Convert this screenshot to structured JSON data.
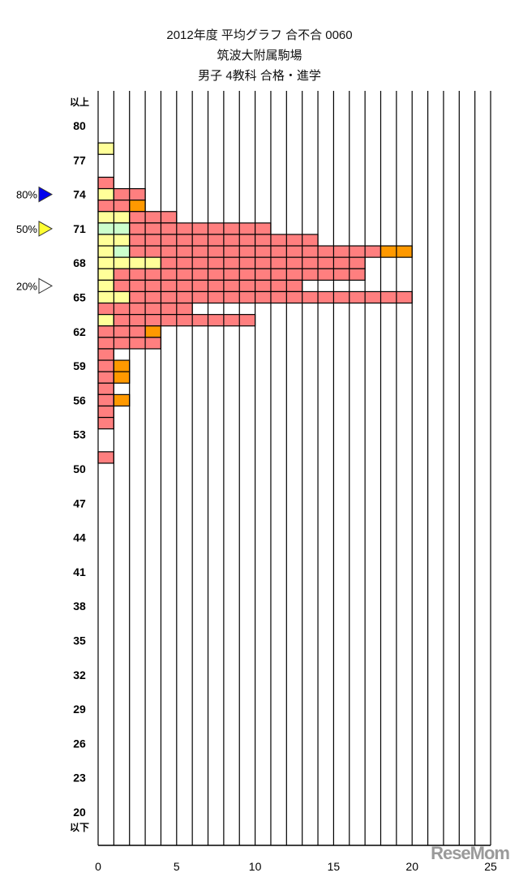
{
  "titles": [
    "2012年度  平均グラフ  合不合  0060",
    "筑波大附属駒場",
    "男子  4教科  合格・進学"
  ],
  "watermark": "ReseMom",
  "chart_data": {
    "type": "bar",
    "orientation": "horizontal-stacked",
    "title": "2012年度 平均グラフ 合不合 0060 / 筑波大附属駒場 / 男子 4教科 合格・進学",
    "xlabel": "",
    "ylabel": "",
    "xlim": [
      0,
      25
    ],
    "x_ticks": [
      "0",
      "5",
      "10",
      "15",
      "20",
      "25"
    ],
    "y_ticks": [
      "以上",
      "80",
      "77",
      "74",
      "71",
      "68",
      "65",
      "62",
      "59",
      "56",
      "53",
      "50",
      "47",
      "44",
      "41",
      "38",
      "35",
      "32",
      "29",
      "26",
      "23",
      "20",
      "以下"
    ],
    "grid": "vertical every 1",
    "colors": {
      "red": "#FF7F7F",
      "orange": "#FF9900",
      "yellow": "#FFFF99",
      "green": "#CCFFCC"
    },
    "markers": [
      {
        "label": "80%",
        "score": 74,
        "color": "#0000EE"
      },
      {
        "label": "50%",
        "score": 71,
        "color": "#FFFF33"
      },
      {
        "label": "20%",
        "score": 66,
        "color": "#FFFFFF"
      }
    ],
    "rows": [
      {
        "score": 78,
        "segments": [
          [
            "yellow",
            1
          ]
        ]
      },
      {
        "score": 75,
        "segments": [
          [
            "red",
            1
          ]
        ]
      },
      {
        "score": 74,
        "segments": [
          [
            "yellow",
            1
          ],
          [
            "red",
            2
          ]
        ]
      },
      {
        "score": 73,
        "segments": [
          [
            "red",
            2
          ],
          [
            "orange",
            1
          ]
        ]
      },
      {
        "score": 72,
        "segments": [
          [
            "yellow",
            2
          ],
          [
            "red",
            3
          ]
        ]
      },
      {
        "score": 71,
        "segments": [
          [
            "green",
            2
          ],
          [
            "red",
            9
          ]
        ]
      },
      {
        "score": 70,
        "segments": [
          [
            "yellow",
            2
          ],
          [
            "red",
            12
          ]
        ]
      },
      {
        "score": 69,
        "segments": [
          [
            "yellow",
            1
          ],
          [
            "green",
            1
          ],
          [
            "red",
            16
          ],
          [
            "orange",
            2
          ]
        ]
      },
      {
        "score": 68,
        "segments": [
          [
            "yellow",
            4
          ],
          [
            "red",
            13
          ]
        ]
      },
      {
        "score": 67,
        "segments": [
          [
            "yellow",
            1
          ],
          [
            "red",
            16
          ]
        ]
      },
      {
        "score": 66,
        "segments": [
          [
            "yellow",
            1
          ],
          [
            "red",
            12
          ]
        ]
      },
      {
        "score": 65,
        "segments": [
          [
            "yellow",
            2
          ],
          [
            "red",
            18
          ]
        ]
      },
      {
        "score": 64,
        "segments": [
          [
            "red",
            6
          ]
        ]
      },
      {
        "score": 63,
        "segments": [
          [
            "yellow",
            1
          ],
          [
            "red",
            9
          ]
        ]
      },
      {
        "score": 62,
        "segments": [
          [
            "red",
            3
          ],
          [
            "orange",
            1
          ]
        ]
      },
      {
        "score": 61,
        "segments": [
          [
            "red",
            4
          ]
        ]
      },
      {
        "score": 60,
        "segments": [
          [
            "red",
            1
          ]
        ]
      },
      {
        "score": 59,
        "segments": [
          [
            "red",
            1
          ],
          [
            "orange",
            1
          ]
        ]
      },
      {
        "score": 58,
        "segments": [
          [
            "red",
            1
          ],
          [
            "orange",
            1
          ]
        ]
      },
      {
        "score": 57,
        "segments": [
          [
            "red",
            1
          ]
        ]
      },
      {
        "score": 56,
        "segments": [
          [
            "red",
            1
          ],
          [
            "orange",
            1
          ]
        ]
      },
      {
        "score": 55,
        "segments": [
          [
            "red",
            1
          ]
        ]
      },
      {
        "score": 54,
        "segments": [
          [
            "red",
            1
          ]
        ]
      },
      {
        "score": 51,
        "segments": [
          [
            "red",
            1
          ]
        ]
      }
    ]
  }
}
